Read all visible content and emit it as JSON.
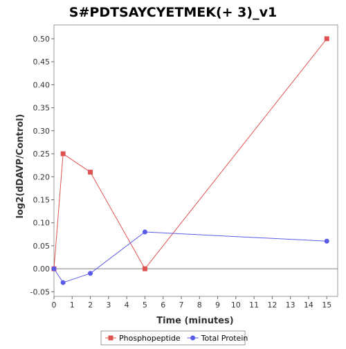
{
  "chart_data": {
    "type": "line",
    "title": "S#PDTSAYCYETMEK(+ 3)_v1",
    "xlabel": "Time (minutes)",
    "ylabel": "log2(dDAVP/Control)",
    "xlim": [
      0,
      15.6
    ],
    "ylim": [
      -0.06,
      0.53
    ],
    "x_ticks": [
      0,
      1,
      2,
      3,
      4,
      5,
      6,
      7,
      8,
      9,
      10,
      11,
      12,
      13,
      14,
      15
    ],
    "y_ticks": [
      -0.05,
      0.0,
      0.05,
      0.1,
      0.15,
      0.2,
      0.25,
      0.3,
      0.35,
      0.4,
      0.45,
      0.5
    ],
    "y_tick_labels": [
      "-0.05",
      "0.00",
      "0.05",
      "0.10",
      "0.15",
      "0.20",
      "0.25",
      "0.30",
      "0.35",
      "0.40",
      "0.45",
      "0.50"
    ],
    "zero_line": true,
    "grid": false,
    "legend_position": "bottom-center",
    "series": [
      {
        "name": "Phosphopeptide",
        "color": "#e05252",
        "marker": "square",
        "x": [
          0,
          0.5,
          2,
          5,
          15
        ],
        "y": [
          0.0,
          0.25,
          0.21,
          0.0,
          0.5
        ]
      },
      {
        "name": "Total Protein",
        "color": "#5a5ae8",
        "marker": "circle",
        "x": [
          0,
          0.5,
          2,
          5,
          15
        ],
        "y": [
          0.0,
          -0.03,
          -0.01,
          0.08,
          0.06
        ]
      }
    ]
  }
}
